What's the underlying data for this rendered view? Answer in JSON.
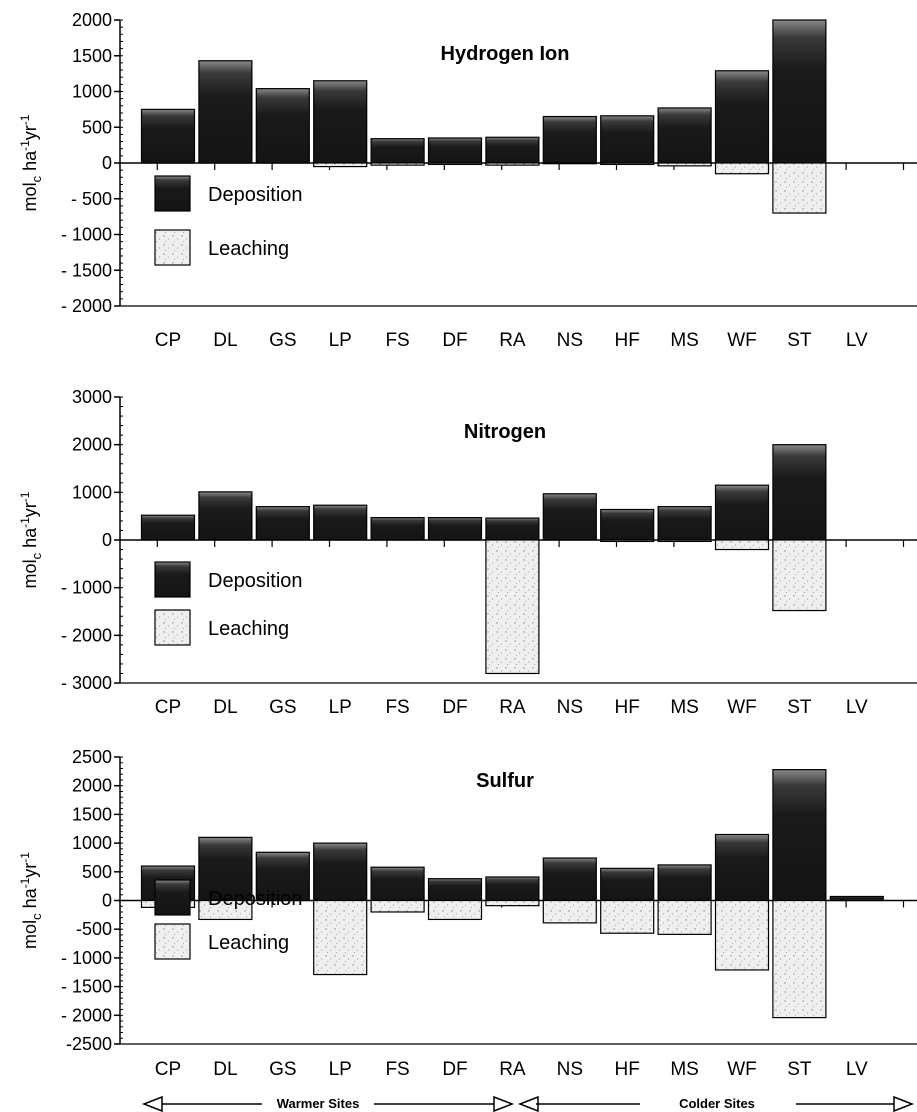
{
  "colors": {
    "deposition": "#1c1c1c",
    "deposition_top": "#6a6a6a",
    "leaching": "#eeeeee",
    "leaching_speck": "#9a9a9a",
    "axis": "#000000"
  },
  "chart_data": [
    {
      "type": "bar",
      "title": "Hydrogen Ion",
      "ylabel": "mol_c ha-1 yr-1",
      "ylim": [
        -2000,
        2000
      ],
      "yticks": [
        2000,
        1500,
        1000,
        500,
        0,
        -500,
        -1000,
        -1500,
        -2000
      ],
      "ytick_labels": [
        "2000",
        "1500",
        "1000",
        "500",
        "0",
        "- 500",
        "- 1000",
        "- 1500",
        "- 2000"
      ],
      "categories": [
        "CP",
        "DL",
        "GS",
        "LP",
        "FS",
        "DF",
        "RA",
        "NS",
        "HF",
        "MS",
        "WF",
        "ST",
        "LV"
      ],
      "series": [
        {
          "name": "Deposition",
          "values": [
            750,
            1430,
            1040,
            1150,
            340,
            350,
            360,
            650,
            660,
            770,
            1290,
            2000,
            0
          ]
        },
        {
          "name": "Leaching",
          "values": [
            0,
            0,
            0,
            -50,
            -30,
            -20,
            -30,
            -10,
            -20,
            -40,
            -150,
            -700,
            0
          ]
        }
      ],
      "legend": [
        "Deposition",
        "Leaching"
      ],
      "legend_position": "bottom-left"
    },
    {
      "type": "bar",
      "title": "Nitrogen",
      "ylabel": "mol_c ha-1 yr-1",
      "ylim": [
        -3000,
        3000
      ],
      "yticks": [
        3000,
        2000,
        1000,
        0,
        -1000,
        -2000,
        -3000
      ],
      "ytick_labels": [
        "3000",
        "2000",
        "1000",
        "0",
        "- 1000",
        "- 2000",
        "- 3000"
      ],
      "categories": [
        "CP",
        "DL",
        "GS",
        "LP",
        "FS",
        "DF",
        "RA",
        "NS",
        "HF",
        "MS",
        "WF",
        "ST",
        "LV"
      ],
      "series": [
        {
          "name": "Deposition",
          "values": [
            520,
            1010,
            700,
            730,
            470,
            470,
            460,
            970,
            640,
            700,
            1150,
            2000,
            0
          ]
        },
        {
          "name": "Leaching",
          "values": [
            0,
            0,
            0,
            0,
            0,
            0,
            -2800,
            0,
            -30,
            -30,
            -200,
            -1480,
            0
          ]
        }
      ],
      "legend": [
        "Deposition",
        "Leaching"
      ],
      "legend_position": "bottom-left"
    },
    {
      "type": "bar",
      "title": "Sulfur",
      "ylabel": "mol_c ha-1 yr-1",
      "ylim": [
        -2500,
        2500
      ],
      "yticks": [
        2500,
        2000,
        1500,
        1000,
        500,
        0,
        -500,
        -1000,
        -1500,
        -2000,
        -2500
      ],
      "ytick_labels": [
        "2500",
        "2000",
        "1500",
        "1000",
        "500",
        "0",
        "-500",
        "- 1000",
        "- 1500",
        "- 2000",
        "-2500"
      ],
      "categories": [
        "CP",
        "DL",
        "GS",
        "LP",
        "FS",
        "DF",
        "RA",
        "NS",
        "HF",
        "MS",
        "WF",
        "ST",
        "LV"
      ],
      "series": [
        {
          "name": "Deposition",
          "values": [
            600,
            1100,
            840,
            1000,
            580,
            380,
            410,
            740,
            560,
            620,
            1150,
            2280,
            70
          ]
        },
        {
          "name": "Leaching",
          "values": [
            -120,
            -330,
            0,
            -1290,
            -200,
            -330,
            -90,
            -390,
            -570,
            -590,
            -1210,
            -2040,
            0
          ]
        }
      ],
      "legend": [
        "Deposition",
        "Leaching"
      ],
      "legend_position": "bottom-left"
    }
  ],
  "footer": {
    "left_label": "Warmer Sites",
    "right_label": "Colder Sites"
  }
}
